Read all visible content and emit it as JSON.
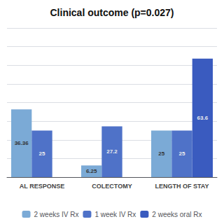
{
  "chart_data": {
    "type": "bar",
    "title": "Clinical outcome (p=0.027)",
    "categories": [
      "AL RESPONSE",
      "COLECTOMY",
      "LENGTH OF STAY"
    ],
    "series": [
      {
        "name": "2 weeks IV Rx",
        "color": "#7baad6",
        "values": [
          36.36,
          6.25,
          25.0
        ]
      },
      {
        "name": "1 week IV Rx",
        "color": "#4f72c8",
        "values": [
          25.0,
          27.2,
          25.0
        ]
      },
      {
        "name": "2 weeks oral Rx",
        "color": "#3a5bbf",
        "values": [
          0,
          0,
          63.6
        ]
      }
    ],
    "ylim": [
      0,
      80
    ],
    "yticks": [
      0,
      10,
      20,
      30,
      40,
      50,
      60,
      70,
      80
    ],
    "grid": true,
    "legend": "bottom",
    "data_labels": true,
    "tick_labels": "x"
  }
}
